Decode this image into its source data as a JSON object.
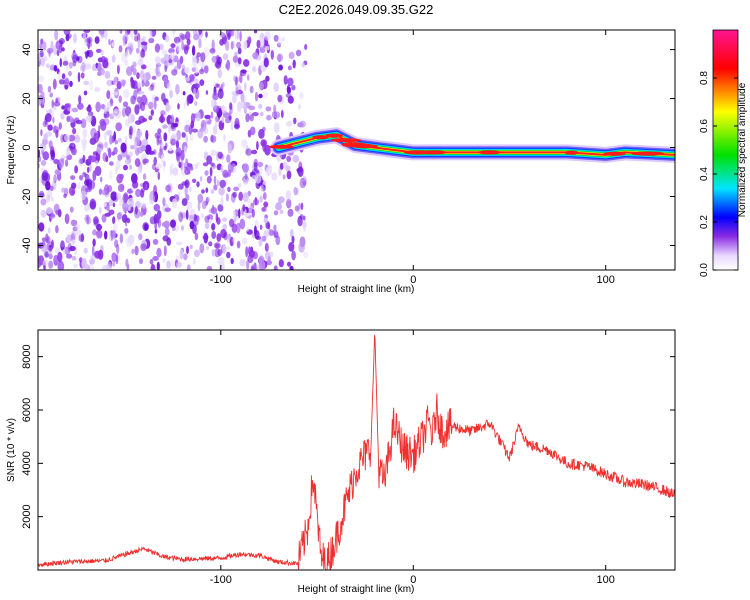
{
  "chart_data": [
    {
      "type": "heatmap",
      "title": "C2E2.2026.049.09.35.G22",
      "xlabel": "Height of straight line (km)",
      "ylabel": "Frequency (Hz)",
      "xlim": [
        -195,
        136
      ],
      "ylim": [
        -50,
        48
      ],
      "xticks": [
        -100,
        0,
        100
      ],
      "xtick_labels": [
        "-100",
        "0",
        "100"
      ],
      "yticks": [
        -40,
        -20,
        0,
        20,
        40
      ],
      "ytick_labels": [
        "-40",
        "-20",
        "0",
        "20",
        "40"
      ],
      "noise_region_x": [
        -195,
        -60
      ],
      "signal_track": {
        "x": [
          -70,
          -60,
          -50,
          -40,
          -35,
          -30,
          -20,
          -10,
          0,
          20,
          50,
          80,
          100,
          110,
          136
        ],
        "freq": [
          0,
          2,
          4,
          5,
          3,
          1,
          0,
          -1,
          -2,
          -2,
          -2,
          -2,
          -3,
          -2,
          -3
        ]
      },
      "colorbar": {
        "label": "Normalized spectral amplitude",
        "range": [
          0,
          1
        ],
        "ticks": [
          0.0,
          0.2,
          0.4,
          0.6,
          0.8
        ],
        "tick_labels": [
          "0.0",
          "0.2",
          "0.4",
          "0.6",
          "0.8"
        ],
        "colors": [
          "#ffffff",
          "#8a2be2",
          "#0000ff",
          "#00e5ff",
          "#00e000",
          "#ffff00",
          "#ff0000",
          "#ff1493"
        ]
      }
    },
    {
      "type": "line",
      "xlabel": "Height of straight line (km)",
      "ylabel": "SNR (10 * v/v)",
      "xlim": [
        -195,
        136
      ],
      "ylim": [
        0,
        9000
      ],
      "xticks": [
        -100,
        0,
        100
      ],
      "xtick_labels": [
        "-100",
        "0",
        "100"
      ],
      "yticks": [
        2000,
        4000,
        6000,
        8000
      ],
      "ytick_labels": [
        "2000",
        "4000",
        "6000",
        "8000"
      ],
      "color": "#ee3030",
      "series": [
        {
          "name": "SNR",
          "x": [
            -195,
            -180,
            -160,
            -140,
            -130,
            -120,
            -100,
            -90,
            -80,
            -70,
            -60,
            -55,
            -52,
            -48,
            -45,
            -40,
            -35,
            -30,
            -25,
            -22,
            -20,
            -18,
            -15,
            -10,
            -5,
            0,
            5,
            8,
            10,
            12,
            15,
            20,
            30,
            40,
            50,
            55,
            60,
            70,
            80,
            90,
            100,
            110,
            120,
            130,
            136
          ],
          "y": [
            200,
            300,
            350,
            800,
            500,
            400,
            450,
            600,
            550,
            300,
            250,
            1500,
            3500,
            500,
            200,
            1200,
            2500,
            3700,
            4300,
            4600,
            9000,
            3800,
            3300,
            5500,
            4500,
            4300,
            5000,
            5600,
            5000,
            6000,
            5200,
            5400,
            5200,
            5500,
            4200,
            5400,
            4700,
            4500,
            4000,
            3900,
            3600,
            3300,
            3200,
            3000,
            2800
          ]
        }
      ]
    }
  ]
}
